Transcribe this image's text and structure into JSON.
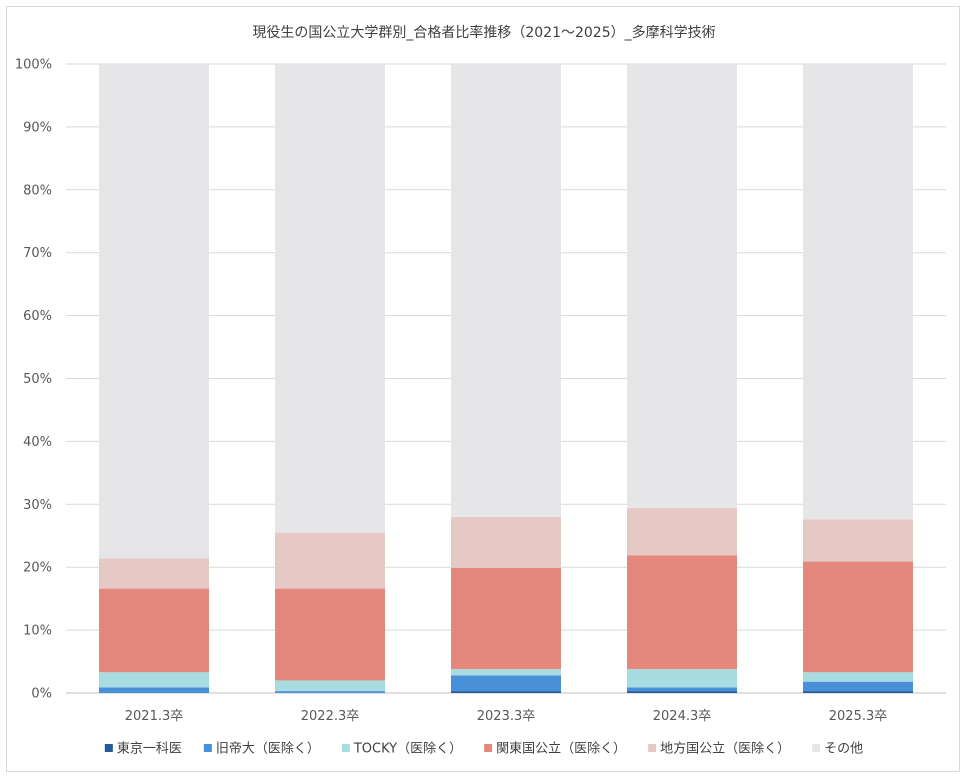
{
  "chart_data": {
    "type": "bar",
    "stacked": true,
    "percent": true,
    "title": "現役生の国公立大学群別_合格者比率推移（2021～2025）_多摩科学技術",
    "xlabel": "",
    "ylabel": "",
    "ylim": [
      0,
      100
    ],
    "yticks": [
      "0%",
      "10%",
      "20%",
      "30%",
      "40%",
      "50%",
      "60%",
      "70%",
      "80%",
      "90%",
      "100%"
    ],
    "categories": [
      "2021.3卒",
      "2022.3卒",
      "2023.3卒",
      "2024.3卒",
      "2025.3卒"
    ],
    "series": [
      {
        "name": "東京一科医",
        "color": "#1f5c99",
        "values": [
          0.0,
          0.0,
          0.3,
          0.3,
          0.3
        ]
      },
      {
        "name": "旧帝大（医除く）",
        "color": "#4a90d9",
        "values": [
          0.9,
          0.3,
          2.5,
          0.6,
          1.5
        ]
      },
      {
        "name": "TOCKY（医除く）",
        "color": "#a7dde0",
        "values": [
          2.4,
          1.7,
          1.0,
          2.9,
          1.5
        ]
      },
      {
        "name": "関東国公立（医除く）",
        "color": "#e4887d",
        "values": [
          13.3,
          14.6,
          16.1,
          18.1,
          17.6
        ]
      },
      {
        "name": "地方国公立（医除く）",
        "color": "#e6c8c4",
        "values": [
          4.8,
          8.9,
          8.1,
          7.5,
          6.7
        ]
      },
      {
        "name": "その他",
        "color": "#e6e6e8",
        "values": [
          78.6,
          74.5,
          72.0,
          70.6,
          72.4
        ]
      }
    ],
    "grid": true,
    "legend": "bottom"
  }
}
